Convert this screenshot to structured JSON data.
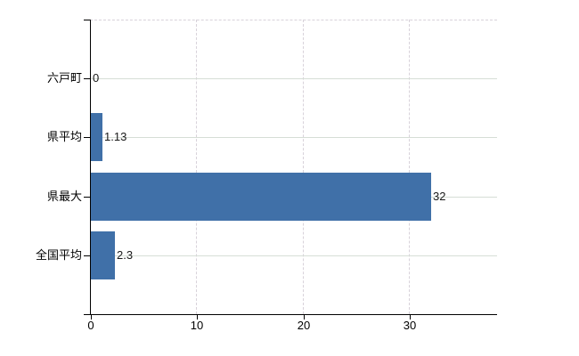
{
  "chart_data": {
    "type": "bar",
    "orientation": "horizontal",
    "title": "",
    "xlabel": "",
    "ylabel": "",
    "categories": [
      "六戸町",
      "県平均",
      "県最大",
      "全国平均"
    ],
    "values": [
      0,
      1.13,
      32,
      2.3
    ],
    "value_labels": [
      "0",
      "1.13",
      "32",
      "2.3"
    ],
    "xticks": [
      0,
      10,
      20,
      30
    ],
    "xtick_labels": [
      "0",
      "10",
      "20",
      "30"
    ],
    "xlim": [
      0,
      38.3
    ],
    "grid": true,
    "legend": "none",
    "colors": {
      "bar": "#4070a8",
      "axis": "#000000",
      "h_gridline": "#d6ded6",
      "v_gridline": "#d8d2da",
      "text": "#000000",
      "value_text": "#1a1a1a",
      "background": "#ffffff"
    }
  }
}
